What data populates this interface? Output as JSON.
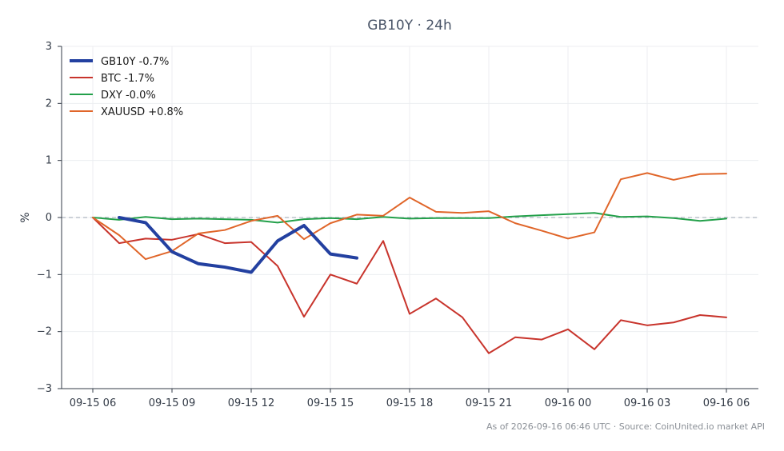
{
  "chart_data": {
    "type": "line",
    "title": "GB10Y · 24h",
    "ylabel": "%",
    "xlabel": "",
    "ylim": [
      -3,
      3
    ],
    "yticks": [
      3,
      2,
      1,
      0,
      -1,
      -2,
      -3
    ],
    "ytick_labels": [
      "3",
      "2",
      "1",
      "0",
      "−1",
      "−2",
      "−3"
    ],
    "xticks": [
      "09-15 06",
      "09-15 09",
      "09-15 12",
      "09-15 15",
      "09-15 18",
      "09-15 21",
      "09-16 00",
      "09-16 03",
      "09-16 06"
    ],
    "grid": true,
    "legend_position": "top-left",
    "zero_line": true,
    "series": [
      {
        "name": "GB10Y -0.7%",
        "color": "#2340a0",
        "width": 4,
        "x_start": 1,
        "values": [
          0.0,
          -0.09,
          -0.6,
          -0.81,
          -0.87,
          -0.96,
          -0.41,
          -0.14,
          -0.64,
          -0.71
        ]
      },
      {
        "name": "BTC -1.7%",
        "color": "#c8342c",
        "width": 2,
        "x_start": 0,
        "values": [
          0.0,
          -0.45,
          -0.37,
          -0.39,
          -0.29,
          -0.45,
          -0.43,
          -0.85,
          -1.74,
          -1.0,
          -1.16,
          -0.41,
          -1.69,
          -1.42,
          -1.75,
          -2.38,
          -2.1,
          -2.14,
          -1.96,
          -2.31,
          -1.8,
          -1.89,
          -1.84,
          -1.71,
          -1.75
        ]
      },
      {
        "name": "DXY -0.0%",
        "color": "#23a04a",
        "width": 2,
        "x_start": 0,
        "values": [
          0.0,
          -0.04,
          0.01,
          -0.03,
          -0.02,
          -0.03,
          -0.04,
          -0.09,
          -0.03,
          -0.01,
          -0.03,
          0.01,
          -0.02,
          -0.01,
          -0.01,
          -0.01,
          0.02,
          0.04,
          0.06,
          0.08,
          0.01,
          0.02,
          -0.01,
          -0.06,
          -0.02
        ]
      },
      {
        "name": "XAUUSD +0.8%",
        "color": "#e0662a",
        "width": 2,
        "x_start": 0,
        "values": [
          0.0,
          -0.31,
          -0.73,
          -0.59,
          -0.28,
          -0.22,
          -0.06,
          0.03,
          -0.38,
          -0.1,
          0.05,
          0.03,
          0.35,
          0.1,
          0.08,
          0.11,
          -0.1,
          -0.23,
          -0.37,
          -0.26,
          0.67,
          0.78,
          0.66,
          0.76,
          0.77
        ]
      }
    ]
  },
  "footer": "As of 2026-09-16 06:46 UTC · Source: CoinUnited.io market API"
}
